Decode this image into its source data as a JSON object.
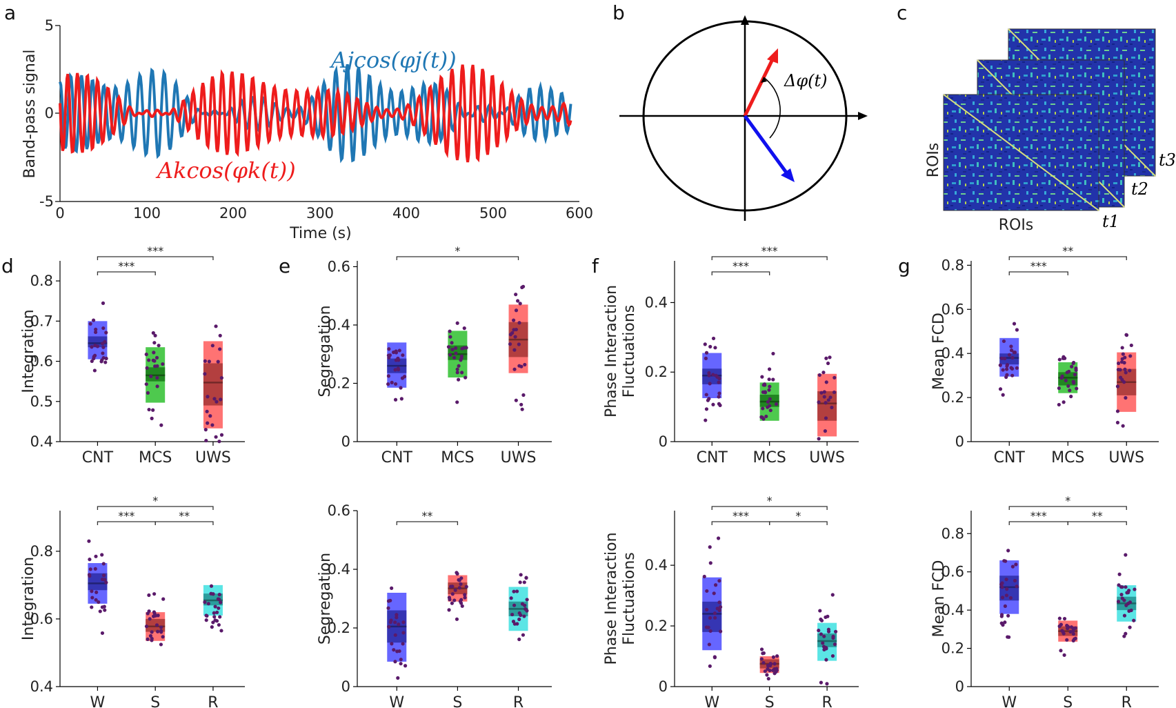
{
  "panel_labels": {
    "a": "a",
    "b": "b",
    "c": "c",
    "d": "d",
    "e": "e",
    "f": "f",
    "g": "g"
  },
  "colors": {
    "blue_signal": "#1f77b4",
    "red_signal": "#ee1c1c",
    "CNT": "#4b4bff",
    "MCS": "#2fbf2f",
    "UWS": "#ff5a5a",
    "W": "#4b4bff",
    "S": "#ff5a5a",
    "R": "#3ee0e0",
    "dot": "#5a1a6a"
  },
  "panel_a": {
    "ylabel": "Band-pass signal",
    "xlabel": "Time (s)",
    "yticks": [
      "5",
      "0",
      "-5"
    ],
    "xticks": [
      "0",
      "100",
      "200",
      "300",
      "400",
      "500",
      "600"
    ],
    "label_j": "Ajcos(φj(t))",
    "label_k": "Akcos(φk(t))",
    "ylim": [
      -5,
      5
    ],
    "xlim": [
      0,
      600
    ]
  },
  "panel_b": {
    "delta_label": "Δφ(t)"
  },
  "panel_c": {
    "xlabel": "ROIs",
    "ylabel": "ROIs",
    "t1": "t1",
    "t2": "t2",
    "t3": "t3"
  },
  "chart_data": [
    {
      "id": "d1",
      "type": "box",
      "ylabel": "Integration",
      "ylim": [
        0.4,
        0.85
      ],
      "yticks": [
        "0.4",
        "0.5",
        "0.6",
        "0.7",
        "0.8"
      ],
      "categories": [
        "CNT",
        "MCS",
        "UWS"
      ],
      "boxes": [
        {
          "q1": 0.605,
          "med": 0.645,
          "q3": 0.7,
          "mlo": 0.635,
          "mhi": 0.662
        },
        {
          "q1": 0.497,
          "med": 0.565,
          "q3": 0.635,
          "mlo": 0.55,
          "mhi": 0.585
        },
        {
          "q1": 0.433,
          "med": 0.547,
          "q3": 0.65,
          "mlo": 0.49,
          "mhi": 0.595
        }
      ],
      "sig": [
        {
          "from": 0,
          "to": 1,
          "label": "***"
        },
        {
          "from": 0,
          "to": 2,
          "label": "***"
        }
      ]
    },
    {
      "id": "e1",
      "type": "box",
      "ylabel": "Segregation",
      "ylim": [
        0,
        0.62
      ],
      "yticks": [
        "0",
        "0.2",
        "0.4",
        "0.6"
      ],
      "categories": [
        "CNT",
        "MCS",
        "UWS"
      ],
      "boxes": [
        {
          "q1": 0.185,
          "med": 0.26,
          "q3": 0.34,
          "mlo": 0.235,
          "mhi": 0.285
        },
        {
          "q1": 0.22,
          "med": 0.3,
          "q3": 0.38,
          "mlo": 0.28,
          "mhi": 0.33
        },
        {
          "q1": 0.235,
          "med": 0.35,
          "q3": 0.47,
          "mlo": 0.29,
          "mhi": 0.41
        }
      ],
      "sig": [
        {
          "from": 0,
          "to": 2,
          "label": "*"
        }
      ]
    },
    {
      "id": "f1",
      "type": "box",
      "ylabel": "Phase Interaction Fluctuations",
      "ylim": [
        0,
        0.52
      ],
      "yticks": [
        "0",
        "0.2",
        "0.4"
      ],
      "categories": [
        "CNT",
        "MCS",
        "UWS"
      ],
      "boxes": [
        {
          "q1": 0.125,
          "med": 0.19,
          "q3": 0.255,
          "mlo": 0.165,
          "mhi": 0.21
        },
        {
          "q1": 0.06,
          "med": 0.115,
          "q3": 0.17,
          "mlo": 0.1,
          "mhi": 0.135
        },
        {
          "q1": 0.015,
          "med": 0.11,
          "q3": 0.195,
          "mlo": 0.06,
          "mhi": 0.145
        }
      ],
      "sig": [
        {
          "from": 0,
          "to": 1,
          "label": "***"
        },
        {
          "from": 0,
          "to": 2,
          "label": "***"
        }
      ]
    },
    {
      "id": "g1",
      "type": "box",
      "ylabel": "Mean FCD",
      "ylim": [
        0,
        0.82
      ],
      "yticks": [
        "0",
        "0.2",
        "0.4",
        "0.6",
        "0.8"
      ],
      "categories": [
        "CNT",
        "MCS",
        "UWS"
      ],
      "boxes": [
        {
          "q1": 0.295,
          "med": 0.38,
          "q3": 0.47,
          "mlo": 0.35,
          "mhi": 0.4
        },
        {
          "q1": 0.22,
          "med": 0.29,
          "q3": 0.36,
          "mlo": 0.255,
          "mhi": 0.315
        },
        {
          "q1": 0.135,
          "med": 0.27,
          "q3": 0.405,
          "mlo": 0.21,
          "mhi": 0.33
        }
      ],
      "sig": [
        {
          "from": 0,
          "to": 1,
          "label": "***"
        },
        {
          "from": 0,
          "to": 2,
          "label": "**"
        }
      ]
    },
    {
      "id": "d2",
      "type": "box",
      "ylabel": "Integration",
      "ylim": [
        0.4,
        0.92
      ],
      "yticks": [
        "0.4",
        "0.6",
        "0.8"
      ],
      "categories": [
        "W",
        "S",
        "R"
      ],
      "boxes": [
        {
          "q1": 0.645,
          "med": 0.705,
          "q3": 0.765,
          "mlo": 0.685,
          "mhi": 0.735
        },
        {
          "q1": 0.535,
          "med": 0.578,
          "q3": 0.62,
          "mlo": 0.562,
          "mhi": 0.6
        },
        {
          "q1": 0.61,
          "med": 0.655,
          "q3": 0.7,
          "mlo": 0.64,
          "mhi": 0.675
        }
      ],
      "sig": [
        {
          "from": 0,
          "to": 1,
          "label": "***"
        },
        {
          "from": 1,
          "to": 2,
          "label": "**"
        },
        {
          "from": 0,
          "to": 2,
          "label": "*"
        }
      ]
    },
    {
      "id": "e2",
      "type": "box",
      "ylabel": "Segregation",
      "ylim": [
        0,
        0.6
      ],
      "yticks": [
        "0",
        "0.2",
        "0.4",
        "0.6"
      ],
      "categories": [
        "W",
        "S",
        "R"
      ],
      "boxes": [
        {
          "q1": 0.085,
          "med": 0.205,
          "q3": 0.32,
          "mlo": 0.15,
          "mhi": 0.26
        },
        {
          "q1": 0.29,
          "med": 0.335,
          "q3": 0.38,
          "mlo": 0.315,
          "mhi": 0.355
        },
        {
          "q1": 0.19,
          "med": 0.265,
          "q3": 0.34,
          "mlo": 0.24,
          "mhi": 0.29
        }
      ],
      "sig": [
        {
          "from": 0,
          "to": 1,
          "label": "**"
        }
      ]
    },
    {
      "id": "f2",
      "type": "box",
      "ylabel": "Phase Interaction Fluctuations",
      "ylim": [
        0,
        0.58
      ],
      "yticks": [
        "0",
        "0.2",
        "0.4"
      ],
      "categories": [
        "W",
        "S",
        "R"
      ],
      "boxes": [
        {
          "q1": 0.12,
          "med": 0.24,
          "q3": 0.36,
          "mlo": 0.18,
          "mhi": 0.28
        },
        {
          "q1": 0.045,
          "med": 0.075,
          "q3": 0.1,
          "mlo": 0.06,
          "mhi": 0.09
        },
        {
          "q1": 0.085,
          "med": 0.15,
          "q3": 0.21,
          "mlo": 0.13,
          "mhi": 0.175
        }
      ],
      "sig": [
        {
          "from": 0,
          "to": 1,
          "label": "***"
        },
        {
          "from": 1,
          "to": 2,
          "label": "*"
        },
        {
          "from": 0,
          "to": 2,
          "label": "*"
        }
      ]
    },
    {
      "id": "g2",
      "type": "box",
      "ylabel": "Mean FCD",
      "ylim": [
        0,
        0.92
      ],
      "yticks": [
        "0",
        "0.2",
        "0.4",
        "0.6",
        "0.8"
      ],
      "categories": [
        "W",
        "S",
        "R"
      ],
      "boxes": [
        {
          "q1": 0.38,
          "med": 0.52,
          "q3": 0.66,
          "mlo": 0.45,
          "mhi": 0.58
        },
        {
          "q1": 0.235,
          "med": 0.29,
          "q3": 0.345,
          "mlo": 0.265,
          "mhi": 0.315
        },
        {
          "q1": 0.34,
          "med": 0.435,
          "q3": 0.53,
          "mlo": 0.4,
          "mhi": 0.47
        }
      ],
      "sig": [
        {
          "from": 0,
          "to": 1,
          "label": "***"
        },
        {
          "from": 1,
          "to": 2,
          "label": "**"
        },
        {
          "from": 0,
          "to": 2,
          "label": "*"
        }
      ]
    }
  ]
}
